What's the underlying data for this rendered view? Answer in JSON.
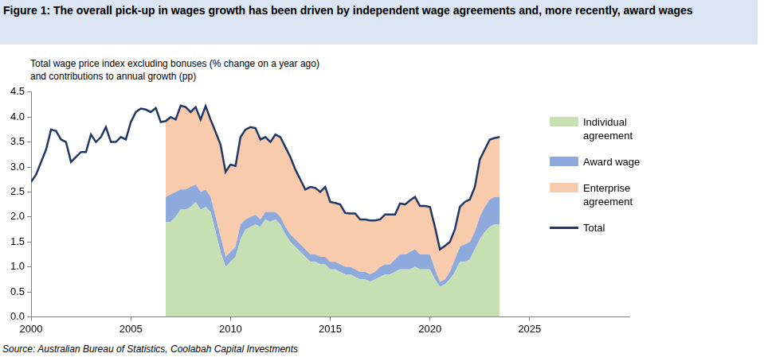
{
  "chart_data": {
    "type": "line",
    "title": "Figure 1: The overall pick-up in wages growth has been driven by independent wage agreements and, more recently, award wages",
    "ylabel": [
      "Total wage price index excluding bonuses (% change on a year ago)",
      "and contributions to annual growth (pp)"
    ],
    "source": "Source: Australian Bureau of Statistics, Coolabah Capital Investments",
    "x": [
      2000,
      2000.25,
      2000.5,
      2000.75,
      2001,
      2001.25,
      2001.5,
      2001.75,
      2002,
      2002.25,
      2002.5,
      2002.75,
      2003,
      2003.25,
      2003.5,
      2003.75,
      2004,
      2004.25,
      2004.5,
      2004.75,
      2005,
      2005.25,
      2005.5,
      2005.75,
      2006,
      2006.25,
      2006.5,
      2006.75,
      2007,
      2007.25,
      2007.5,
      2007.75,
      2008,
      2008.25,
      2008.5,
      2008.75,
      2009,
      2009.25,
      2009.5,
      2009.75,
      2010,
      2010.25,
      2010.5,
      2010.75,
      2011,
      2011.25,
      2011.5,
      2011.75,
      2012,
      2012.25,
      2012.5,
      2012.75,
      2013,
      2013.25,
      2013.5,
      2013.75,
      2014,
      2014.25,
      2014.5,
      2014.75,
      2015,
      2015.25,
      2015.5,
      2015.75,
      2016,
      2016.25,
      2016.5,
      2016.75,
      2017,
      2017.25,
      2017.5,
      2017.75,
      2018,
      2018.25,
      2018.5,
      2018.75,
      2019,
      2019.25,
      2019.5,
      2019.75,
      2020,
      2020.25,
      2020.5,
      2020.75,
      2021,
      2021.25,
      2021.5,
      2021.75,
      2022,
      2022.25,
      2022.5,
      2022.75,
      2023,
      2023.25,
      2023.5
    ],
    "series": [
      {
        "name": "Individual agreement",
        "type": "area",
        "color": "#c6e0b4",
        "values": [
          null,
          null,
          null,
          null,
          null,
          null,
          null,
          null,
          null,
          null,
          null,
          null,
          null,
          null,
          null,
          null,
          null,
          null,
          null,
          null,
          null,
          null,
          null,
          null,
          null,
          null,
          null,
          1.9,
          1.9,
          2.0,
          2.15,
          2.15,
          2.2,
          2.3,
          2.15,
          2.2,
          2.1,
          1.7,
          1.3,
          1.0,
          1.1,
          1.2,
          1.55,
          1.75,
          1.8,
          1.85,
          1.8,
          1.95,
          1.9,
          1.95,
          1.85,
          1.65,
          1.5,
          1.4,
          1.3,
          1.2,
          1.1,
          1.1,
          1.05,
          1.05,
          0.95,
          0.95,
          0.9,
          0.85,
          0.85,
          0.8,
          0.75,
          0.75,
          0.7,
          0.75,
          0.8,
          0.85,
          0.85,
          0.9,
          0.95,
          0.95,
          0.95,
          1.0,
          0.95,
          0.95,
          0.95,
          0.75,
          0.6,
          0.65,
          0.75,
          0.9,
          1.1,
          1.1,
          1.15,
          1.35,
          1.55,
          1.7,
          1.8,
          1.85,
          1.85
        ]
      },
      {
        "name": "Award wage",
        "type": "area",
        "color": "#8ea9db",
        "values": [
          null,
          null,
          null,
          null,
          null,
          null,
          null,
          null,
          null,
          null,
          null,
          null,
          null,
          null,
          null,
          null,
          null,
          null,
          null,
          null,
          null,
          null,
          null,
          null,
          null,
          null,
          null,
          0.5,
          0.55,
          0.5,
          0.4,
          0.4,
          0.4,
          0.35,
          0.35,
          0.35,
          0.3,
          0.3,
          0.3,
          0.2,
          0.2,
          0.2,
          0.3,
          0.2,
          0.2,
          0.2,
          0.15,
          0.15,
          0.2,
          0.15,
          0.15,
          0.15,
          0.15,
          0.15,
          0.15,
          0.15,
          0.15,
          0.15,
          0.15,
          0.15,
          0.15,
          0.15,
          0.15,
          0.15,
          0.15,
          0.15,
          0.15,
          0.15,
          0.15,
          0.15,
          0.2,
          0.2,
          0.2,
          0.25,
          0.3,
          0.3,
          0.35,
          0.35,
          0.3,
          0.3,
          0.3,
          0.2,
          0.1,
          0.1,
          0.15,
          0.25,
          0.3,
          0.35,
          0.35,
          0.35,
          0.45,
          0.5,
          0.55,
          0.55,
          0.55
        ]
      },
      {
        "name": "Enterprise agreement",
        "type": "area",
        "color": "#f8cbad",
        "values": [
          null,
          null,
          null,
          null,
          null,
          null,
          null,
          null,
          null,
          null,
          null,
          null,
          null,
          null,
          null,
          null,
          null,
          null,
          null,
          null,
          null,
          null,
          null,
          null,
          null,
          null,
          null,
          1.52,
          1.55,
          1.45,
          1.68,
          1.65,
          1.5,
          1.55,
          1.45,
          1.67,
          1.55,
          1.7,
          1.85,
          1.7,
          1.75,
          1.62,
          1.75,
          1.8,
          1.8,
          1.73,
          1.6,
          1.5,
          1.4,
          1.55,
          1.6,
          1.6,
          1.55,
          1.4,
          1.3,
          1.2,
          1.35,
          1.33,
          1.3,
          1.4,
          1.2,
          1.18,
          1.2,
          1.08,
          1.07,
          1.12,
          1.05,
          1.05,
          1.08,
          1.03,
          0.95,
          1.0,
          1.0,
          0.9,
          1.02,
          1.0,
          1.03,
          1.05,
          0.97,
          0.97,
          0.95,
          0.85,
          0.65,
          0.67,
          0.6,
          0.6,
          0.8,
          0.85,
          0.85,
          0.9,
          1.15,
          1.15,
          1.2,
          1.18,
          1.2
        ]
      },
      {
        "name": "Total",
        "type": "line",
        "color": "#203864",
        "values": [
          2.7,
          2.85,
          3.1,
          3.35,
          3.75,
          3.72,
          3.55,
          3.5,
          3.1,
          3.2,
          3.3,
          3.3,
          3.65,
          3.5,
          3.6,
          3.8,
          3.5,
          3.5,
          3.6,
          3.55,
          3.9,
          4.1,
          4.17,
          4.15,
          4.1,
          4.18,
          3.9,
          3.92,
          4.0,
          3.95,
          4.23,
          4.2,
          4.1,
          4.2,
          3.95,
          4.22,
          3.95,
          3.7,
          3.45,
          2.9,
          3.05,
          3.02,
          3.6,
          3.75,
          3.8,
          3.78,
          3.55,
          3.6,
          3.5,
          3.65,
          3.6,
          3.4,
          3.2,
          2.95,
          2.75,
          2.55,
          2.6,
          2.58,
          2.5,
          2.6,
          2.3,
          2.28,
          2.25,
          2.08,
          2.07,
          2.07,
          1.95,
          1.95,
          1.93,
          1.93,
          1.95,
          2.05,
          2.05,
          2.05,
          2.27,
          2.25,
          2.33,
          2.4,
          2.22,
          2.22,
          2.2,
          1.8,
          1.35,
          1.42,
          1.5,
          1.75,
          2.2,
          2.3,
          2.35,
          2.6,
          3.15,
          3.35,
          3.55,
          3.58,
          3.6
        ]
      }
    ],
    "xlim": [
      2000,
      2030
    ],
    "xticks": [
      2000,
      2005,
      2010,
      2015,
      2020,
      2025
    ],
    "ylim": [
      0,
      4.5
    ],
    "yticks": [
      {
        "value": 0,
        "label": "0.0"
      },
      {
        "value": 0.5,
        "label": "0.5"
      },
      {
        "value": 1,
        "label": "1.0"
      },
      {
        "value": 1.5,
        "label": "1.5"
      },
      {
        "value": 2,
        "label": "2.0"
      },
      {
        "value": 2.5,
        "label": "2.5"
      },
      {
        "value": 3,
        "label": "3.0"
      },
      {
        "value": 3.5,
        "label": "3.5"
      },
      {
        "value": 4,
        "label": "4.0"
      },
      {
        "value": 4.5,
        "label": "4.5"
      }
    ],
    "stacked": true,
    "grid": false,
    "legend": "right"
  }
}
